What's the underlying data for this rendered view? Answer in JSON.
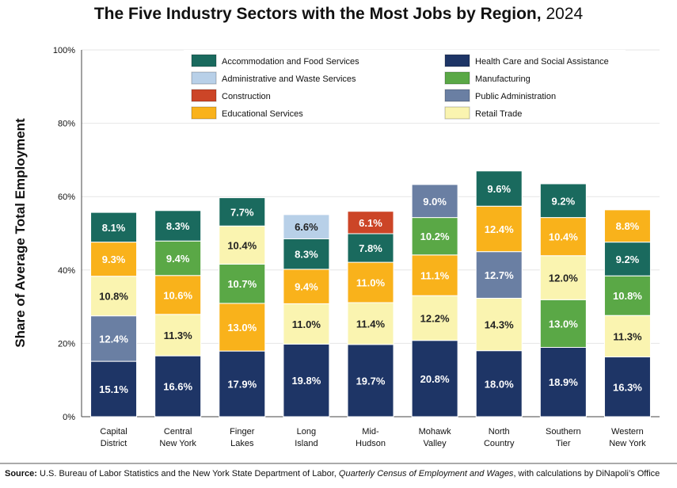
{
  "chart_data": {
    "type": "bar",
    "stacked": true,
    "title": "The Five Industry Sectors with the Most Jobs by Region,",
    "title_year": "2024",
    "ylabel": "Share of Average Total Employment",
    "xlabel": "",
    "ylim": [
      0,
      100
    ],
    "yticks": [
      "0%",
      "20%",
      "40%",
      "60%",
      "80%",
      "100%"
    ],
    "grid": true,
    "legend_position": "top",
    "categories": [
      [
        "Capital",
        "District"
      ],
      [
        "Central",
        "New York"
      ],
      [
        "Finger",
        "Lakes"
      ],
      [
        "Long",
        "Island"
      ],
      [
        "Mid-",
        "Hudson"
      ],
      [
        "Mohawk",
        "Valley"
      ],
      [
        "North",
        "Country"
      ],
      [
        "Southern",
        "Tier"
      ],
      [
        "Western",
        "New York"
      ]
    ],
    "legend": [
      {
        "key": "accom",
        "name": "Accommodation and Food Services",
        "color": "#1a6a5e"
      },
      {
        "key": "admin",
        "name": "Administrative and Waste Services",
        "color": "#b8d0e8"
      },
      {
        "key": "constr",
        "name": "Construction",
        "color": "#cc4527"
      },
      {
        "key": "edu",
        "name": "Educational Services",
        "color": "#f9b21b"
      },
      {
        "key": "hc",
        "name": "Health Care and Social Assistance",
        "color": "#1e3566"
      },
      {
        "key": "mfg",
        "name": "Manufacturing",
        "color": "#5aa846"
      },
      {
        "key": "pa",
        "name": "Public Administration",
        "color": "#6a7fa3"
      },
      {
        "key": "retail",
        "name": "Retail Trade",
        "color": "#faf4b0"
      }
    ],
    "stacks": [
      [
        [
          "hc",
          15.1
        ],
        [
          "pa",
          12.4
        ],
        [
          "retail",
          10.8
        ],
        [
          "edu",
          9.3
        ],
        [
          "accom",
          8.1
        ]
      ],
      [
        [
          "hc",
          16.6
        ],
        [
          "retail",
          11.3
        ],
        [
          "edu",
          10.6
        ],
        [
          "mfg",
          9.4
        ],
        [
          "accom",
          8.3
        ]
      ],
      [
        [
          "hc",
          17.9
        ],
        [
          "edu",
          13.0
        ],
        [
          "mfg",
          10.7
        ],
        [
          "retail",
          10.4
        ],
        [
          "accom",
          7.7
        ]
      ],
      [
        [
          "hc",
          19.8
        ],
        [
          "retail",
          11.0
        ],
        [
          "edu",
          9.4
        ],
        [
          "accom",
          8.3
        ],
        [
          "admin",
          6.6
        ]
      ],
      [
        [
          "hc",
          19.7
        ],
        [
          "retail",
          11.4
        ],
        [
          "edu",
          11.0
        ],
        [
          "accom",
          7.8
        ],
        [
          "constr",
          6.1
        ]
      ],
      [
        [
          "hc",
          20.8
        ],
        [
          "retail",
          12.2
        ],
        [
          "edu",
          11.1
        ],
        [
          "mfg",
          10.2
        ],
        [
          "pa",
          9.0
        ]
      ],
      [
        [
          "hc",
          18.0
        ],
        [
          "retail",
          14.3
        ],
        [
          "pa",
          12.7
        ],
        [
          "edu",
          12.4
        ],
        [
          "accom",
          9.6
        ]
      ],
      [
        [
          "hc",
          18.9
        ],
        [
          "mfg",
          13.0
        ],
        [
          "retail",
          12.0
        ],
        [
          "edu",
          10.4
        ],
        [
          "accom",
          9.2
        ]
      ],
      [
        [
          "hc",
          16.3
        ],
        [
          "retail",
          11.3
        ],
        [
          "mfg",
          10.8
        ],
        [
          "accom",
          9.2
        ],
        [
          "edu",
          8.8
        ]
      ]
    ]
  },
  "source": {
    "label": "Source:",
    "text1": " U.S. Bureau of Labor Statistics and the New York State Department of Labor, ",
    "italic": "Quarterly Census of Employment and Wages",
    "text2": ", with calculations by DiNapoli’s Office"
  }
}
